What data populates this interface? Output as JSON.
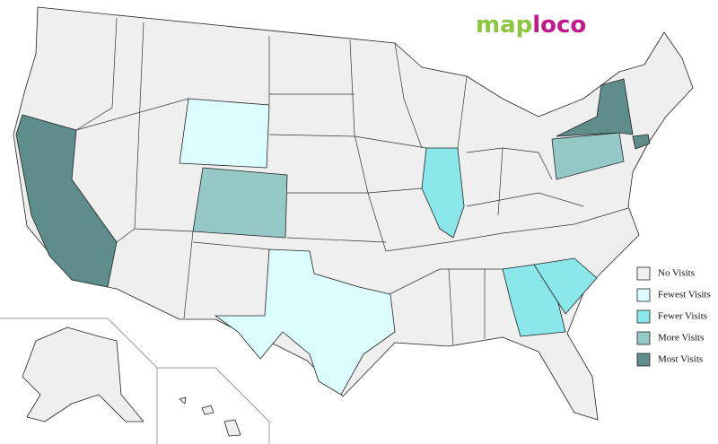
{
  "logo": [
    {
      "text": "map",
      "color": "#8cc63f"
    },
    {
      "text": "loco",
      "color": "#c0188c"
    }
  ],
  "legend": [
    {
      "label": "No Visits",
      "color": "#efefef"
    },
    {
      "label": "Fewest Visits",
      "color": "#dcfdff"
    },
    {
      "label": "Fewer Visits",
      "color": "#8be8ea"
    },
    {
      "label": "More Visits",
      "color": "#94c9c8"
    },
    {
      "label": "Most Visits",
      "color": "#5e8d8b"
    }
  ]
}
